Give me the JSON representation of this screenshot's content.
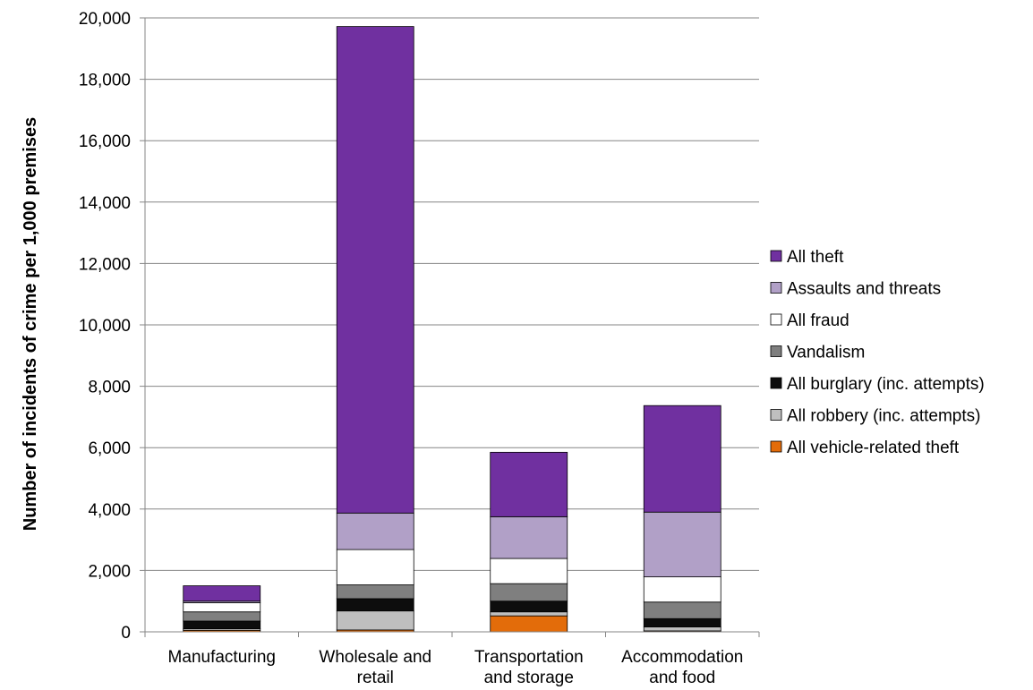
{
  "chart_data": {
    "type": "bar",
    "stacked": true,
    "title": "",
    "xlabel": "",
    "ylabel": "Number of incidents of crime per 1,000 premises",
    "ylim": [
      0,
      20000
    ],
    "yticks": [
      0,
      2000,
      4000,
      6000,
      8000,
      10000,
      12000,
      14000,
      16000,
      18000,
      20000
    ],
    "ytick_labels": [
      "0",
      "2,000",
      "4,000",
      "6,000",
      "8,000",
      "10,000",
      "12,000",
      "14,000",
      "16,000",
      "18,000",
      "20,000"
    ],
    "grid": true,
    "legend_position": "right",
    "categories": [
      [
        "Manufacturing"
      ],
      [
        "Wholesale and",
        "retail"
      ],
      [
        "Transportation",
        "and storage"
      ],
      [
        "Accommodation",
        "and food"
      ]
    ],
    "series": [
      {
        "name": "All vehicle-related theft",
        "color": "#e36c0a",
        "values": [
          50,
          60,
          520,
          30
        ]
      },
      {
        "name": "All robbery (inc. attempts)",
        "color": "#bfbfbf",
        "values": [
          50,
          620,
          130,
          130
        ]
      },
      {
        "name": "All burglary (inc. attempts)",
        "color": "#0d0d0d",
        "values": [
          250,
          400,
          350,
          270
        ]
      },
      {
        "name": "Vandalism",
        "color": "#7f7f7f",
        "values": [
          300,
          450,
          570,
          540
        ]
      },
      {
        "name": "All fraud",
        "color": "#ffffff",
        "values": [
          300,
          1150,
          820,
          820
        ]
      },
      {
        "name": "Assaults and threats",
        "color": "#b1a0c7",
        "values": [
          50,
          1190,
          1360,
          2110
        ]
      },
      {
        "name": "All theft",
        "color": "#7030a0",
        "values": [
          500,
          15850,
          2100,
          3470
        ]
      }
    ]
  }
}
